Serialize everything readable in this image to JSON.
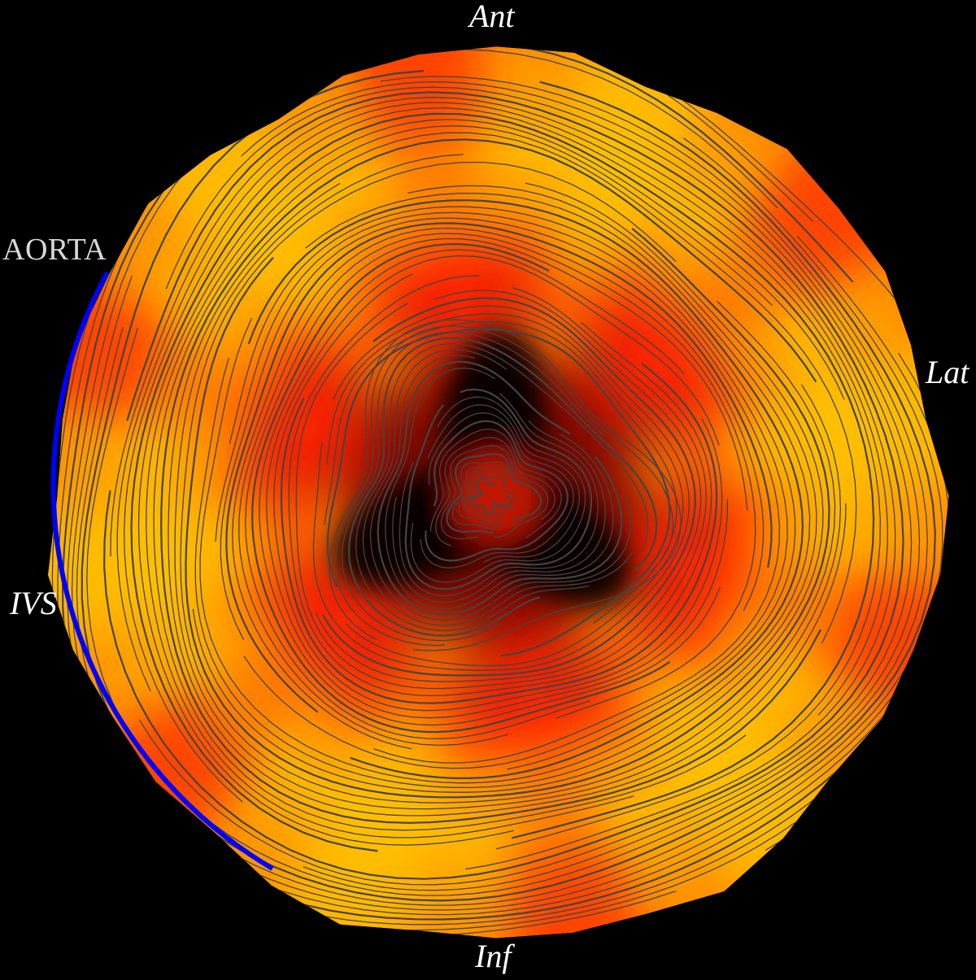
{
  "labels": {
    "anterior": "Ant",
    "lateral": "Lat",
    "inferior": "Inf",
    "septum": "IVS",
    "aorta": "AORTA"
  },
  "colors": {
    "background": "#000000",
    "low": "#000000",
    "mid": "#ff2200",
    "high": "#ffc000",
    "streamline": "#444444",
    "aorta_arc": "#0000ff"
  },
  "lobes": 3
}
